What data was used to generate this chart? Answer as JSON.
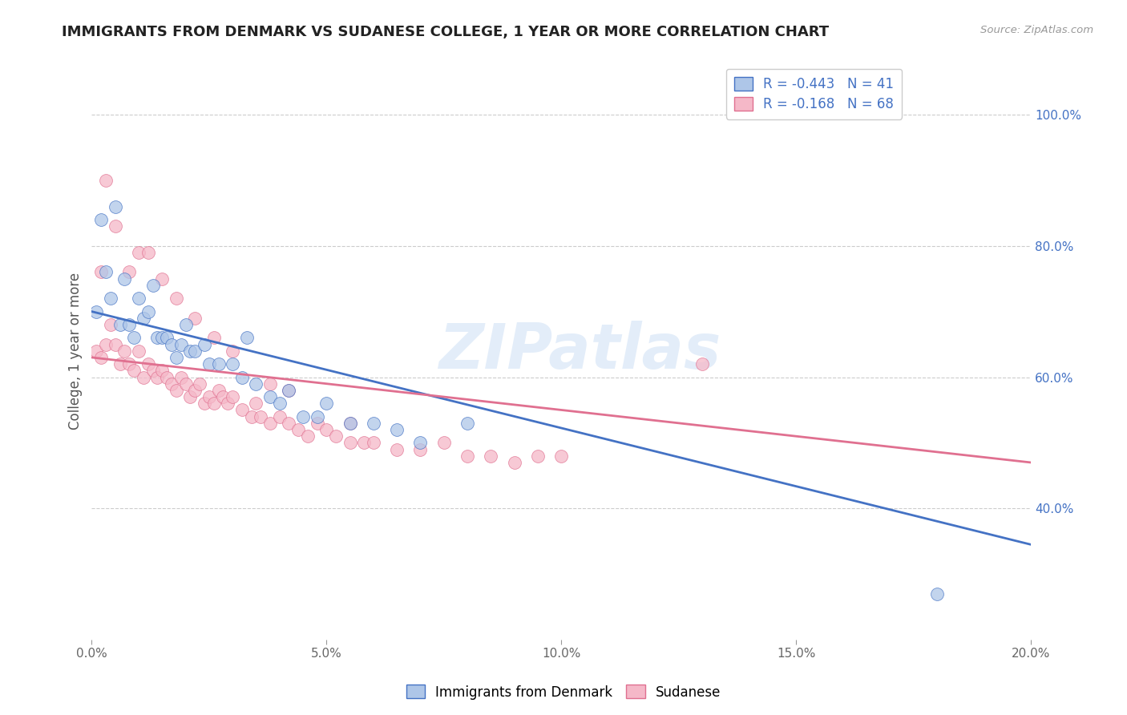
{
  "title": "IMMIGRANTS FROM DENMARK VS SUDANESE COLLEGE, 1 YEAR OR MORE CORRELATION CHART",
  "source": "Source: ZipAtlas.com",
  "ylabel": "College, 1 year or more",
  "xlim": [
    0.0,
    0.2
  ],
  "ylim": [
    0.2,
    1.08
  ],
  "xticks": [
    0.0,
    0.05,
    0.1,
    0.15,
    0.2
  ],
  "xtick_labels": [
    "0.0%",
    "5.0%",
    "10.0%",
    "15.0%",
    "20.0%"
  ],
  "yticks_right": [
    0.4,
    0.6,
    0.8,
    1.0
  ],
  "ytick_labels_right": [
    "40.0%",
    "60.0%",
    "80.0%",
    "100.0%"
  ],
  "denmark_color": "#aec6e8",
  "denmark_line_color": "#4472c4",
  "sudanese_color": "#f5b8c8",
  "sudanese_line_color": "#e07090",
  "legend_R_denmark": "R = -0.443",
  "legend_N_denmark": "N = 41",
  "legend_R_sudanese": "R = -0.168",
  "legend_N_sudanese": "N = 68",
  "watermark": "ZIPatlas",
  "denmark_x": [
    0.001,
    0.002,
    0.003,
    0.004,
    0.005,
    0.006,
    0.007,
    0.008,
    0.009,
    0.01,
    0.011,
    0.012,
    0.013,
    0.014,
    0.015,
    0.016,
    0.017,
    0.018,
    0.019,
    0.02,
    0.021,
    0.022,
    0.024,
    0.025,
    0.027,
    0.03,
    0.032,
    0.033,
    0.035,
    0.038,
    0.04,
    0.042,
    0.045,
    0.048,
    0.05,
    0.055,
    0.06,
    0.065,
    0.07,
    0.08,
    0.18
  ],
  "denmark_y": [
    0.7,
    0.84,
    0.76,
    0.72,
    0.86,
    0.68,
    0.75,
    0.68,
    0.66,
    0.72,
    0.69,
    0.7,
    0.74,
    0.66,
    0.66,
    0.66,
    0.65,
    0.63,
    0.65,
    0.68,
    0.64,
    0.64,
    0.65,
    0.62,
    0.62,
    0.62,
    0.6,
    0.66,
    0.59,
    0.57,
    0.56,
    0.58,
    0.54,
    0.54,
    0.56,
    0.53,
    0.53,
    0.52,
    0.5,
    0.53,
    0.27
  ],
  "sudanese_x": [
    0.001,
    0.002,
    0.003,
    0.004,
    0.005,
    0.006,
    0.007,
    0.008,
    0.009,
    0.01,
    0.011,
    0.012,
    0.013,
    0.014,
    0.015,
    0.016,
    0.017,
    0.018,
    0.019,
    0.02,
    0.021,
    0.022,
    0.023,
    0.024,
    0.025,
    0.026,
    0.027,
    0.028,
    0.029,
    0.03,
    0.032,
    0.034,
    0.035,
    0.036,
    0.038,
    0.04,
    0.042,
    0.044,
    0.046,
    0.048,
    0.05,
    0.052,
    0.055,
    0.058,
    0.06,
    0.065,
    0.07,
    0.075,
    0.08,
    0.085,
    0.09,
    0.095,
    0.1,
    0.002,
    0.003,
    0.005,
    0.008,
    0.01,
    0.012,
    0.015,
    0.018,
    0.022,
    0.026,
    0.03,
    0.038,
    0.042,
    0.055,
    0.13
  ],
  "sudanese_y": [
    0.64,
    0.63,
    0.65,
    0.68,
    0.65,
    0.62,
    0.64,
    0.62,
    0.61,
    0.64,
    0.6,
    0.62,
    0.61,
    0.6,
    0.61,
    0.6,
    0.59,
    0.58,
    0.6,
    0.59,
    0.57,
    0.58,
    0.59,
    0.56,
    0.57,
    0.56,
    0.58,
    0.57,
    0.56,
    0.57,
    0.55,
    0.54,
    0.56,
    0.54,
    0.53,
    0.54,
    0.53,
    0.52,
    0.51,
    0.53,
    0.52,
    0.51,
    0.5,
    0.5,
    0.5,
    0.49,
    0.49,
    0.5,
    0.48,
    0.48,
    0.47,
    0.48,
    0.48,
    0.76,
    0.9,
    0.83,
    0.76,
    0.79,
    0.79,
    0.75,
    0.72,
    0.69,
    0.66,
    0.64,
    0.59,
    0.58,
    0.53,
    0.62
  ],
  "line_dk_x0": 0.0,
  "line_dk_y0": 0.7,
  "line_dk_x1": 0.2,
  "line_dk_y1": 0.345,
  "line_su_x0": 0.0,
  "line_su_y0": 0.63,
  "line_su_x1": 0.2,
  "line_su_y1": 0.47
}
